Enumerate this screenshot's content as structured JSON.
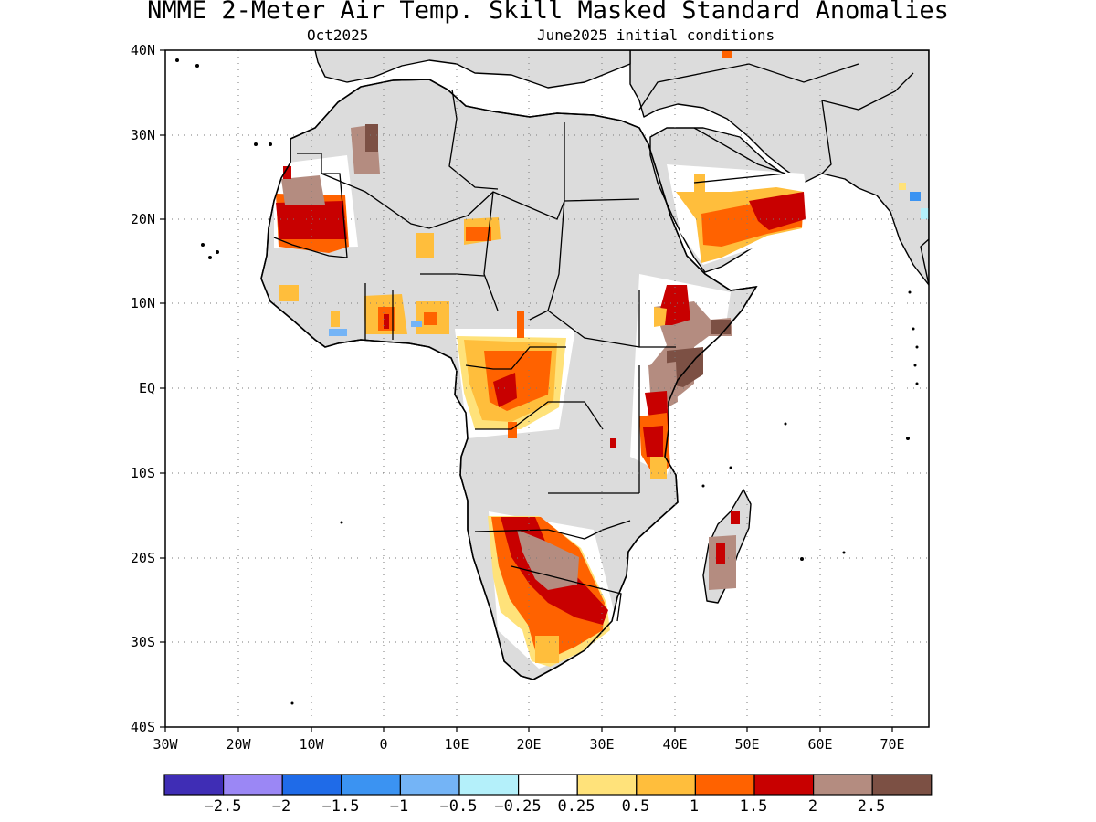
{
  "title": "NMME 2-Meter Air Temp. Skill Masked Standard Anomalies",
  "target_month": "Oct2025",
  "initial_conditions": "June2025 initial conditions",
  "map": {
    "lon_range": [
      -30,
      75
    ],
    "lat_range": [
      -40,
      40
    ],
    "masked_color": "#dcdcdc",
    "coast_color": "#000000",
    "grid": "dotted",
    "lat_ticks": [
      "40N",
      "30N",
      "20N",
      "10N",
      "EQ",
      "10S",
      "20S",
      "30S",
      "40S"
    ],
    "lon_ticks": [
      "30W",
      "20W",
      "10W",
      "0",
      "10E",
      "20E",
      "30E",
      "40E",
      "50E",
      "60E",
      "70E"
    ]
  },
  "colorbar": {
    "labels": [
      "−2.5",
      "−2",
      "−1.5",
      "−1",
      "−0.5",
      "−0.25",
      "0.25",
      "0.5",
      "1",
      "1.5",
      "2",
      "2.5"
    ],
    "colors": [
      "#3f2db5",
      "#9b87f5",
      "#1f6be8",
      "#3b93f2",
      "#74b4f6",
      "#b4f0fa",
      "#ffffff",
      "#ffe27a",
      "#ffbe3c",
      "#ff6200",
      "#c80000",
      "#b48c80",
      "#7c5044"
    ]
  },
  "anomaly_regions": [
    {
      "name": "western-sahara-mauritania",
      "colors": [
        "#ff6200",
        "#c80000",
        "#b48c80"
      ]
    },
    {
      "name": "algeria-morocco",
      "colors": [
        "#b48c80",
        "#7c5044"
      ]
    },
    {
      "name": "arabian-peninsula",
      "colors": [
        "#ffbe3c",
        "#ff6200",
        "#c80000"
      ]
    },
    {
      "name": "horn-of-africa",
      "colors": [
        "#c80000",
        "#b48c80",
        "#7c5044"
      ]
    },
    {
      "name": "central-africa",
      "colors": [
        "#ffe27a",
        "#ffbe3c",
        "#ff6200",
        "#c80000"
      ]
    },
    {
      "name": "southern-africa",
      "colors": [
        "#ffe27a",
        "#ff6200",
        "#c80000",
        "#b48c80"
      ]
    },
    {
      "name": "madagascar",
      "colors": [
        "#b48c80",
        "#c80000"
      ]
    },
    {
      "name": "gulf-of-guinea",
      "colors": [
        "#ffbe3c",
        "#ff6200",
        "#74b4f6"
      ]
    }
  ]
}
